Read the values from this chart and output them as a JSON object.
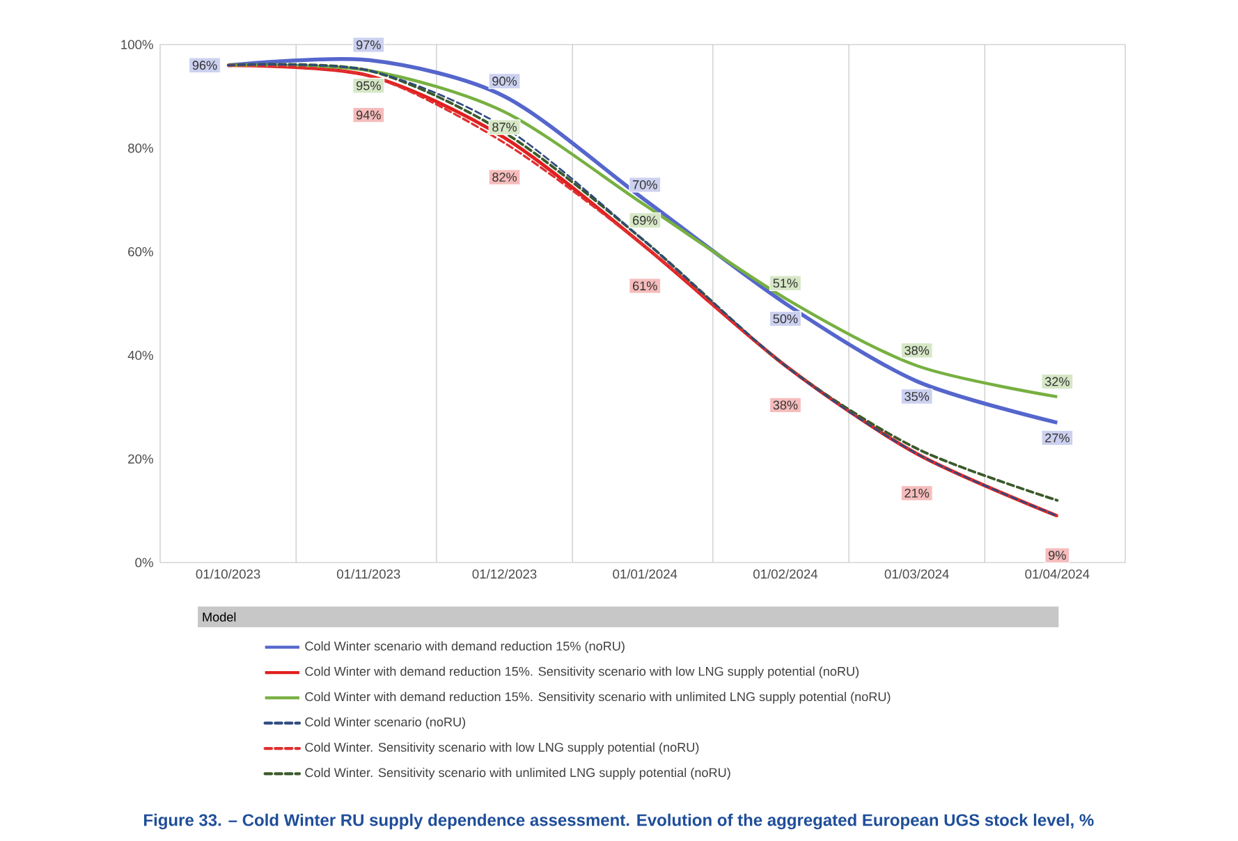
{
  "chart_data": {
    "type": "line",
    "title": "Figure 33. – Cold Winter RU supply dependence assessment. Evolution of the aggregated European UGS stock level, %",
    "legend_title": "Model",
    "x": [
      "2023-10-01",
      "2023-11-01",
      "2023-12-01",
      "2024-01-01",
      "2024-02-01",
      "2024-03-01",
      "2024-04-01"
    ],
    "xlim": [
      "2023-09-16",
      "2024-04-16"
    ],
    "xticks": [
      {
        "value": "2023-10-01",
        "label": "01/10/2023"
      },
      {
        "value": "2023-11-01",
        "label": "01/11/2023"
      },
      {
        "value": "2023-12-01",
        "label": "01/12/2023"
      },
      {
        "value": "2024-01-01",
        "label": "01/01/2024"
      },
      {
        "value": "2024-02-01",
        "label": "01/02/2024"
      },
      {
        "value": "2024-03-01",
        "label": "01/03/2024"
      },
      {
        "value": "2024-04-01",
        "label": "01/04/2024"
      },
      {
        "value": "2023-10-16",
        "label": null
      },
      {
        "value": "2023-11-16",
        "label": null
      },
      {
        "value": "2023-12-16",
        "label": null
      },
      {
        "value": "2024-01-16",
        "label": null
      },
      {
        "value": "2024-02-15",
        "label": null
      },
      {
        "value": "2024-03-16",
        "label": null
      }
    ],
    "ylim": [
      0,
      100
    ],
    "yticks": [
      {
        "value": 0,
        "label": "0%"
      },
      {
        "value": 20,
        "label": "20%"
      },
      {
        "value": 40,
        "label": "40%"
      },
      {
        "value": 60,
        "label": "60%"
      },
      {
        "value": 80,
        "label": "80%"
      },
      {
        "value": 100,
        "label": "100%"
      }
    ],
    "grid": "x",
    "legend": "bottom",
    "marker": "none",
    "line_style": "solid",
    "series": [
      {
        "name": "Cold Winter scenario with demand reduction 15% (noRU)",
        "color": "#5566cc",
        "values": [
          96,
          97,
          90,
          70,
          50,
          35,
          27
        ],
        "value_labels": [
          "96%",
          "97%",
          "90%",
          "70%",
          "50%",
          "35%",
          "27%"
        ]
      },
      {
        "name": "Cold Winter with demand reduction 15%. Sensitivity scenario with low LNG supply potential (noRU)",
        "color": "#e02020",
        "values": [
          96,
          94,
          82,
          61,
          38,
          21,
          9
        ],
        "value_labels": [
          null,
          "94%",
          "82%",
          "61%",
          "38%",
          "21%",
          "9%"
        ]
      },
      {
        "name": "Cold Winter with demand reduction 15%. Sensitivity scenario with unlimited LNG supply potential (noRU)",
        "color": "#77b041",
        "values": [
          96,
          95,
          87,
          69,
          51,
          38,
          32
        ],
        "value_labels": [
          null,
          "95%",
          "87%",
          "69%",
          "51%",
          "38%",
          "32%"
        ]
      },
      {
        "name": "Cold Winter scenario (noRU)",
        "color": "#2f4a7f",
        "line_style": "dashed",
        "values": [
          96,
          95,
          84,
          62,
          38,
          21,
          9
        ]
      },
      {
        "name": "Cold Winter. Sensitivity scenario with low LNG supply potential (noRU)",
        "color": "#e03030",
        "line_style": "dashed",
        "values": [
          96,
          94,
          81,
          61,
          38,
          21,
          9
        ]
      },
      {
        "name": "Cold Winter. Sensitivity scenario with unlimited LNG supply potential (noRU)",
        "color": "#3b5a2a",
        "line_style": "dashed",
        "values": [
          96,
          95,
          83,
          62,
          38,
          22,
          12
        ]
      }
    ]
  }
}
